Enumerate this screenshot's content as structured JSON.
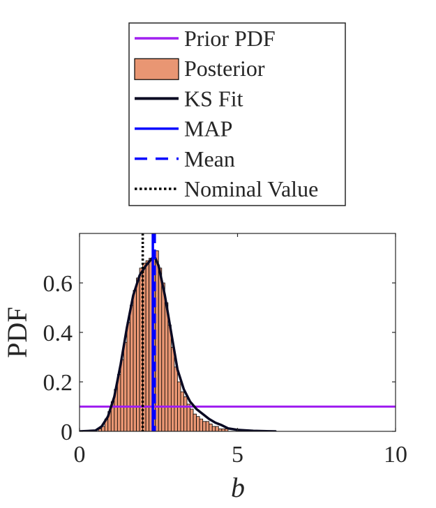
{
  "chart_data": {
    "type": "bar",
    "xlabel": "b",
    "ylabel": "PDF",
    "xlim": [
      0,
      10
    ],
    "ylim": [
      0,
      0.8
    ],
    "xticks": [
      0,
      5,
      10
    ],
    "yticks": [
      0,
      0.2,
      0.4,
      0.6
    ],
    "xtick_labels": [
      "0",
      "5",
      "10"
    ],
    "ytick_labels": [
      "0",
      "0.2",
      "0.4",
      "0.6"
    ],
    "grid": false,
    "legend_position": "top (outside, above axes)",
    "legend": [
      {
        "label": "Prior PDF",
        "style": "line",
        "color": "#a020f0",
        "dash": "solid"
      },
      {
        "label": "Posterior",
        "style": "patch",
        "color": "#e99673",
        "edge": "#000000"
      },
      {
        "label": "KS Fit",
        "style": "line",
        "color": "#0a0a23",
        "dash": "solid"
      },
      {
        "label": "MAP",
        "style": "line",
        "color": "#0000ff",
        "dash": "solid"
      },
      {
        "label": "Mean",
        "style": "line",
        "color": "#0000ff",
        "dash": "dashed"
      },
      {
        "label": "Nominal Value",
        "style": "line",
        "color": "#000000",
        "dash": "dotted"
      }
    ],
    "series": [
      {
        "name": "Posterior",
        "type": "histogram",
        "bin_width": 0.1,
        "bin_starts": [
          0.6,
          0.7,
          0.8,
          0.9,
          1.0,
          1.1,
          1.2,
          1.3,
          1.4,
          1.5,
          1.6,
          1.7,
          1.8,
          1.9,
          2.0,
          2.1,
          2.2,
          2.3,
          2.4,
          2.5,
          2.6,
          2.7,
          2.8,
          2.9,
          3.0,
          3.1,
          3.2,
          3.3,
          3.4,
          3.5,
          3.6,
          3.7,
          3.8,
          3.9,
          4.0,
          4.1,
          4.2,
          4.3,
          4.4,
          4.5,
          4.6
        ],
        "values": [
          0.01,
          0.02,
          0.05,
          0.08,
          0.12,
          0.17,
          0.23,
          0.29,
          0.36,
          0.44,
          0.51,
          0.57,
          0.62,
          0.66,
          0.68,
          0.69,
          0.7,
          0.71,
          0.73,
          0.66,
          0.6,
          0.52,
          0.43,
          0.34,
          0.26,
          0.2,
          0.16,
          0.14,
          0.11,
          0.09,
          0.07,
          0.06,
          0.05,
          0.04,
          0.04,
          0.03,
          0.02,
          0.02,
          0.01,
          0.01,
          0.01
        ]
      },
      {
        "name": "KS Fit",
        "type": "line",
        "x": [
          0,
          0.5,
          0.7,
          0.9,
          1.1,
          1.3,
          1.5,
          1.7,
          1.9,
          2.1,
          2.3,
          2.4,
          2.5,
          2.7,
          2.9,
          3.1,
          3.3,
          3.5,
          3.7,
          3.9,
          4.1,
          4.3,
          4.5,
          4.7,
          5.0,
          5.5,
          6.2
        ],
        "y": [
          0,
          0.003,
          0.02,
          0.06,
          0.14,
          0.27,
          0.42,
          0.55,
          0.63,
          0.67,
          0.7,
          0.7,
          0.67,
          0.55,
          0.4,
          0.25,
          0.17,
          0.12,
          0.09,
          0.07,
          0.05,
          0.035,
          0.025,
          0.012,
          0.006,
          0.002,
          0.0
        ]
      },
      {
        "name": "Prior PDF",
        "type": "hline",
        "y": 0.1
      },
      {
        "name": "MAP",
        "type": "vline",
        "x": 2.32
      },
      {
        "name": "Mean",
        "type": "vline",
        "x": 2.38
      },
      {
        "name": "Nominal Value",
        "type": "vline",
        "x": 2.0
      }
    ]
  }
}
